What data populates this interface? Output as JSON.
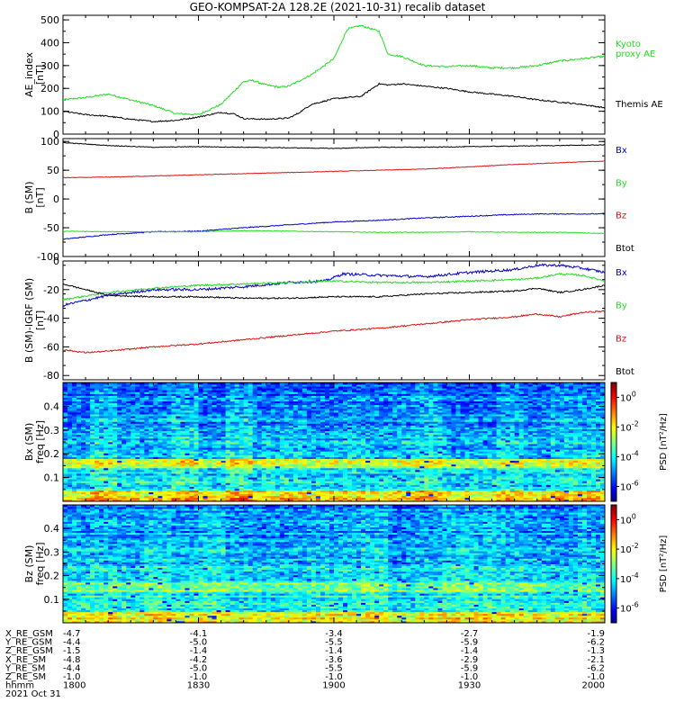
{
  "title": "GEO-KOMPSAT-2A 128.2E (2021-10-31) recalib dataset",
  "colors": {
    "black": "#000000",
    "blue": "#0000cc",
    "green": "#22dd22",
    "red": "#dd1111"
  },
  "x_axis": {
    "range": [
      0,
      120
    ],
    "tick_positions": [
      0,
      30,
      60,
      90,
      120
    ],
    "tick_labels": [
      "1800",
      "1830",
      "1900",
      "1930",
      "2000"
    ],
    "minor_step": 5
  },
  "chart_data": [
    {
      "type": "line",
      "ylabel": "AE_index\n[nT]",
      "ylim": [
        0,
        520
      ],
      "yticks": [
        0,
        100,
        200,
        300,
        400,
        500
      ],
      "yminor": 50,
      "series": [
        {
          "name": "Kyoto\nproxy AE",
          "color_key": "green",
          "x": [
            0,
            5,
            10,
            15,
            20,
            25,
            30,
            35,
            40,
            42,
            45,
            48,
            50,
            55,
            60,
            63,
            66,
            70,
            72,
            75,
            80,
            85,
            90,
            95,
            100,
            105,
            110,
            115,
            120
          ],
          "y": [
            150,
            160,
            175,
            150,
            125,
            90,
            85,
            130,
            230,
            235,
            215,
            205,
            210,
            260,
            330,
            460,
            475,
            450,
            350,
            340,
            300,
            295,
            300,
            290,
            290,
            300,
            320,
            330,
            340
          ],
          "noise": 4
        },
        {
          "name": "Themis AE",
          "color_key": "black",
          "x": [
            0,
            5,
            10,
            15,
            20,
            25,
            30,
            35,
            38,
            40,
            45,
            50,
            52,
            55,
            60,
            63,
            66,
            70,
            72,
            75,
            80,
            85,
            90,
            95,
            100,
            105,
            110,
            115,
            120
          ],
          "y": [
            100,
            85,
            78,
            65,
            55,
            60,
            75,
            95,
            88,
            68,
            65,
            70,
            90,
            130,
            155,
            160,
            165,
            220,
            215,
            220,
            210,
            200,
            185,
            175,
            165,
            150,
            140,
            130,
            115
          ],
          "noise": 3
        }
      ]
    },
    {
      "type": "line",
      "ylabel": "B (SM)\n[nT]",
      "ylim": [
        -100,
        105
      ],
      "yticks": [
        -100,
        -50,
        0,
        50,
        100
      ],
      "yminor": 25,
      "series": [
        {
          "name": "Bx",
          "color_key": "blue",
          "x": [
            0,
            10,
            20,
            30,
            40,
            50,
            60,
            70,
            80,
            90,
            100,
            105,
            110,
            120
          ],
          "y": [
            -70,
            -62,
            -57,
            -56,
            -50,
            -45,
            -40,
            -37,
            -33,
            -30,
            -27,
            -26,
            -26,
            -26
          ],
          "noise": 0.8
        },
        {
          "name": "By",
          "color_key": "green",
          "x": [
            0,
            10,
            20,
            30,
            40,
            50,
            60,
            70,
            80,
            90,
            100,
            110,
            120
          ],
          "y": [
            -56,
            -57,
            -57,
            -57,
            -55,
            -56,
            -57,
            -58,
            -58,
            -57,
            -58,
            -58,
            -60
          ],
          "noise": 0.6
        },
        {
          "name": "Bz",
          "color_key": "red",
          "x": [
            0,
            10,
            20,
            30,
            40,
            50,
            60,
            70,
            80,
            90,
            100,
            110,
            120
          ],
          "y": [
            37,
            38,
            40,
            42,
            44,
            46,
            48,
            50,
            52,
            56,
            60,
            63,
            66
          ],
          "noise": 0.5
        },
        {
          "name": "Btot",
          "color_key": "black",
          "x": [
            0,
            10,
            20,
            30,
            40,
            50,
            60,
            70,
            80,
            90,
            100,
            110,
            120
          ],
          "y": [
            98,
            93,
            90,
            91,
            90,
            89,
            88,
            90,
            90,
            91,
            92,
            93,
            94
          ],
          "noise": 0.6
        }
      ]
    },
    {
      "type": "line",
      "ylabel": "B (SM)-IGRF (SM)\n[nT]",
      "ylim": [
        -83,
        0
      ],
      "yticks": [
        -80,
        -60,
        -40,
        -20,
        0
      ],
      "yminor": 10,
      "series": [
        {
          "name": "Bx",
          "color_key": "blue",
          "x": [
            0,
            10,
            20,
            30,
            40,
            50,
            58,
            62,
            70,
            80,
            90,
            100,
            105,
            110,
            115,
            120
          ],
          "y": [
            -31,
            -24,
            -20,
            -20,
            -18,
            -15,
            -14,
            -9,
            -10,
            -11,
            -8,
            -6,
            -3,
            -3,
            -5,
            -8
          ],
          "noise": 0.9
        },
        {
          "name": "By",
          "color_key": "green",
          "x": [
            0,
            10,
            20,
            30,
            40,
            50,
            60,
            70,
            80,
            90,
            100,
            105,
            110,
            115,
            120
          ],
          "y": [
            -27,
            -22,
            -19,
            -17,
            -16,
            -15,
            -14,
            -15,
            -15,
            -14,
            -13,
            -12,
            -9,
            -10,
            -14
          ],
          "noise": 0.6
        },
        {
          "name": "Bz",
          "color_key": "red",
          "x": [
            0,
            5,
            10,
            20,
            30,
            40,
            50,
            60,
            70,
            80,
            90,
            100,
            105,
            110,
            115,
            120
          ],
          "y": [
            -62,
            -64,
            -63,
            -60,
            -58,
            -55,
            -52,
            -49,
            -47,
            -44,
            -41,
            -39,
            -37,
            -39,
            -36,
            -35
          ],
          "noise": 0.5
        },
        {
          "name": "Btot",
          "color_key": "black",
          "x": [
            0,
            5,
            10,
            20,
            30,
            40,
            50,
            60,
            70,
            80,
            90,
            100,
            105,
            110,
            115,
            120
          ],
          "y": [
            -16,
            -20,
            -24,
            -25,
            -25,
            -26,
            -26,
            -25,
            -25,
            -23,
            -22,
            -21,
            -19,
            -22,
            -20,
            -17
          ],
          "noise": 0.5
        }
      ]
    },
    {
      "type": "heatmap",
      "ylabel": "Bx (SM)\nfreq [Hz]",
      "ylim": [
        0,
        0.5
      ],
      "yticks": [
        0.1,
        0.2,
        0.3,
        0.4
      ],
      "yminor": 0.05,
      "colorbar_label": "PSD [nT²/Hz]",
      "colorbar_ticks": [
        "10^0",
        "10^-2",
        "10^-4",
        "10^-6"
      ],
      "colorbar_range_log": [
        -7,
        1
      ],
      "low_freq_boost": true
    },
    {
      "type": "heatmap",
      "ylabel": "Bz (SM)\nfreq [Hz]",
      "ylim": [
        0,
        0.5
      ],
      "yticks": [
        0.1,
        0.2,
        0.3,
        0.4
      ],
      "yminor": 0.05,
      "colorbar_label": "PSD [nT²/Hz]",
      "colorbar_ticks": [
        "10^0",
        "10^-2",
        "10^-4",
        "10^-6"
      ],
      "colorbar_range_log": [
        -7,
        1
      ],
      "low_freq_boost": false
    }
  ],
  "ephemeris": {
    "row_labels": [
      "X_RE_GSM",
      "Y_RE_GSM",
      "Z_RE_GSM",
      "X_RE_SM",
      "Y_RE_SM",
      "Z_RE_SM",
      "hhmm"
    ],
    "columns": [
      [
        "-4.7",
        "-4.4",
        "-1.5",
        "-4.8",
        "-4.4",
        "-1.0",
        "1800"
      ],
      [
        "-4.1",
        "-5.0",
        "-1.4",
        "-4.2",
        "-5.0",
        "-1.0",
        "1830"
      ],
      [
        "-3.4",
        "-5.5",
        "-1.4",
        "-3.6",
        "-5.5",
        "-1.0",
        "1900"
      ],
      [
        "-2.7",
        "-5.9",
        "-1.4",
        "-2.9",
        "-5.9",
        "-1.0",
        "1930"
      ],
      [
        "-1.9",
        "-6.2",
        "-1.3",
        "-2.1",
        "-6.2",
        "-1.0",
        "2000"
      ]
    ],
    "date": "2021 Oct 31"
  }
}
